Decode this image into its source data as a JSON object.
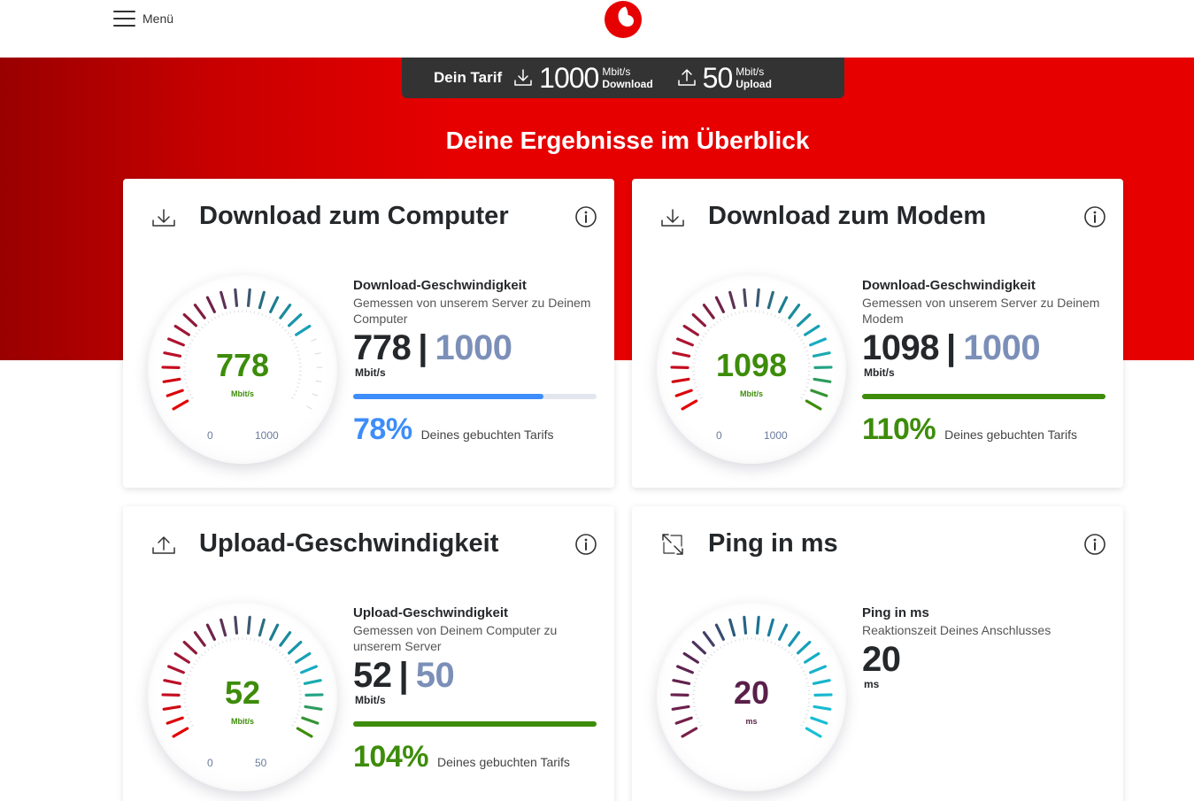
{
  "header": {
    "menu_label": "Menü",
    "brand_color": "#e60000"
  },
  "tariff": {
    "label": "Dein Tarif",
    "download_value": "1000",
    "download_unit": "Mbit/s",
    "download_label": "Download",
    "upload_value": "50",
    "upload_unit": "Mbit/s",
    "upload_label": "Upload"
  },
  "page_title": "Deine Ergebnisse im Überblick",
  "cards": [
    {
      "title": "Download zum Computer",
      "icon": "download-icon",
      "gauge_value": "778",
      "gauge_unit": "Mbit/s",
      "gauge_min": "0",
      "gauge_max": "1000",
      "gauge_fraction": 0.778,
      "value_color": "#3d8c0a",
      "metric_label": "Download-Geschwindigkeit",
      "metric_desc": "Gemessen von unserem Server zu Deinem Computer",
      "measured": "778",
      "separator": "|",
      "tariff_value": "1000",
      "unit": "Mbit/s",
      "percent": "78%",
      "percent_fraction": 0.78,
      "percent_color": "#3d8dfa",
      "bar_color": "#3d8dfa",
      "percent_text": "Deines gebuchten Tarifs"
    },
    {
      "title": "Download zum Modem",
      "icon": "download-icon",
      "gauge_value": "1098",
      "gauge_unit": "Mbit/s",
      "gauge_min": "0",
      "gauge_max": "1000",
      "gauge_fraction": 1.0,
      "value_color": "#3d8c0a",
      "metric_label": "Download-Geschwindigkeit",
      "metric_desc": "Gemessen von unserem Server zu Deinem Modem",
      "measured": "1098",
      "separator": "|",
      "tariff_value": "1000",
      "unit": "Mbit/s",
      "percent": "110%",
      "percent_fraction": 1.0,
      "percent_color": "#3d8c0a",
      "bar_color": "#3d8c0a",
      "percent_text": "Deines gebuchten Tarifs"
    },
    {
      "title": "Upload-Geschwindigkeit",
      "icon": "upload-icon",
      "gauge_value": "52",
      "gauge_unit": "Mbit/s",
      "gauge_min": "0",
      "gauge_max": "50",
      "gauge_fraction": 1.0,
      "value_color": "#3d8c0a",
      "metric_label": "Upload-Geschwindigkeit",
      "metric_desc": "Gemessen von Deinem Computer zu unserem Server",
      "measured": "52",
      "separator": "|",
      "tariff_value": "50",
      "unit": "Mbit/s",
      "percent": "104%",
      "percent_fraction": 1.0,
      "percent_color": "#3d8c0a",
      "bar_color": "#3d8c0a",
      "percent_text": "Deines gebuchten Tarifs"
    },
    {
      "title": "Ping in ms",
      "icon": "ping-icon",
      "gauge_value": "20",
      "gauge_unit": "ms",
      "value_color": "#5a1f4a",
      "metric_label": "Ping in ms",
      "metric_desc": "Reaktionszeit Deines Anschlusses",
      "measured": "20",
      "unit": "ms"
    }
  ]
}
